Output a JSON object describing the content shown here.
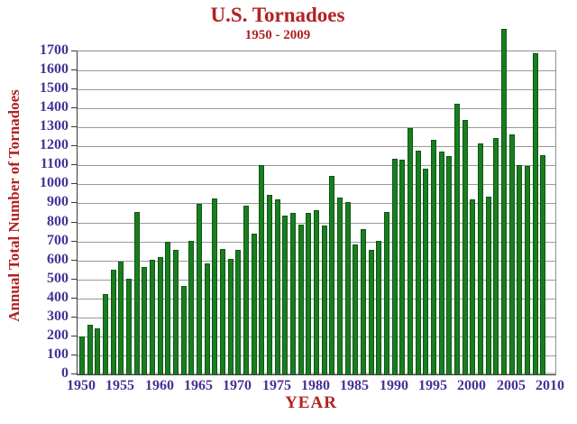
{
  "header": {
    "title": "U.S. Tornadoes",
    "subtitle": "1950 - 2009"
  },
  "colors": {
    "title_red": "#b22222",
    "tick_label_purple": "#473296",
    "bar_green": "#1a7d20",
    "bar_border_green": "#0e5713",
    "grid_gray": "#999999",
    "axis_dark": "#3a3a3a"
  },
  "chart_data": {
    "type": "bar",
    "title": "U.S. Tornadoes",
    "subtitle": "1950 - 2009",
    "xlabel": "YEAR",
    "ylabel": "Annual Total Number of Tornadoes",
    "ylim": [
      0,
      1700
    ],
    "ytick_interval": 100,
    "xtick_labels": [
      1950,
      1955,
      1960,
      1965,
      1970,
      1975,
      1980,
      1985,
      1990,
      1995,
      2000,
      2005,
      2010
    ],
    "grid": true,
    "legend": "none",
    "note": "2004 bar exceeds the top of the y-axis (1700)",
    "categories": [
      1950,
      1951,
      1952,
      1953,
      1954,
      1955,
      1956,
      1957,
      1958,
      1959,
      1960,
      1961,
      1962,
      1963,
      1964,
      1965,
      1966,
      1967,
      1968,
      1969,
      1970,
      1971,
      1972,
      1973,
      1974,
      1975,
      1976,
      1977,
      1978,
      1979,
      1980,
      1981,
      1982,
      1983,
      1984,
      1985,
      1986,
      1987,
      1988,
      1989,
      1990,
      1991,
      1992,
      1993,
      1994,
      1995,
      1996,
      1997,
      1998,
      1999,
      2000,
      2001,
      2002,
      2003,
      2004,
      2005,
      2006,
      2007,
      2008,
      2009
    ],
    "values": [
      201,
      260,
      240,
      421,
      550,
      593,
      504,
      856,
      564,
      604,
      616,
      697,
      657,
      464,
      704,
      897,
      585,
      926,
      660,
      608,
      653,
      888,
      741,
      1102,
      947,
      920,
      835,
      852,
      788,
      852,
      866,
      783,
      1046,
      931,
      907,
      684,
      764,
      656,
      702,
      856,
      1133,
      1132,
      1298,
      1176,
      1082,
      1235,
      1173,
      1148,
      1424,
      1339,
      922,
      1215,
      934,
      1246,
      1817,
      1265,
      1103,
      1096,
      1692,
      1156
    ]
  }
}
